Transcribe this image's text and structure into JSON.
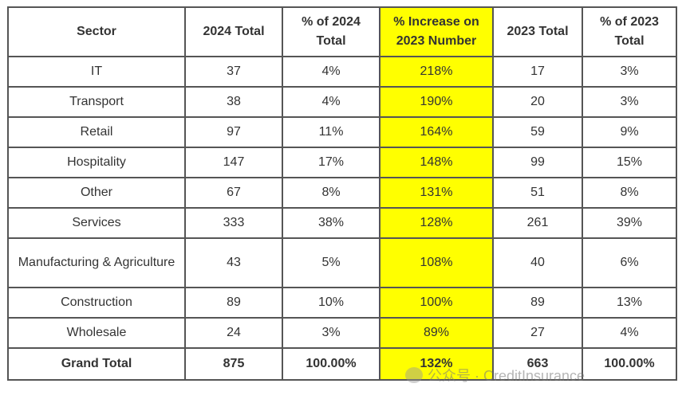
{
  "headers": [
    "Sector",
    "2024 Total",
    "% of 2024 Total",
    "% Increase on 2023 Number",
    "2023 Total",
    "% of 2023 Total"
  ],
  "rows": [
    [
      "IT",
      "37",
      "4%",
      "218%",
      "17",
      "3%"
    ],
    [
      "Transport",
      "38",
      "4%",
      "190%",
      "20",
      "3%"
    ],
    [
      "Retail",
      "97",
      "11%",
      "164%",
      "59",
      "9%"
    ],
    [
      "Hospitality",
      "147",
      "17%",
      "148%",
      "99",
      "15%"
    ],
    [
      "Other",
      "67",
      "8%",
      "131%",
      "51",
      "8%"
    ],
    [
      "Services",
      "333",
      "38%",
      "128%",
      "261",
      "39%"
    ],
    [
      "Manufacturing & Agriculture",
      "43",
      "5%",
      "108%",
      "40",
      "6%"
    ],
    [
      "Construction",
      "89",
      "10%",
      "100%",
      "89",
      "13%"
    ],
    [
      "Wholesale",
      "24",
      "3%",
      "89%",
      "27",
      "4%"
    ]
  ],
  "total": [
    "Grand Total",
    "875",
    "100.00%",
    "132%",
    "663",
    "100.00%"
  ],
  "watermark": "公众号 · CreditInsurance",
  "colors": {
    "highlight": "#ffff00",
    "border": "#555555"
  }
}
